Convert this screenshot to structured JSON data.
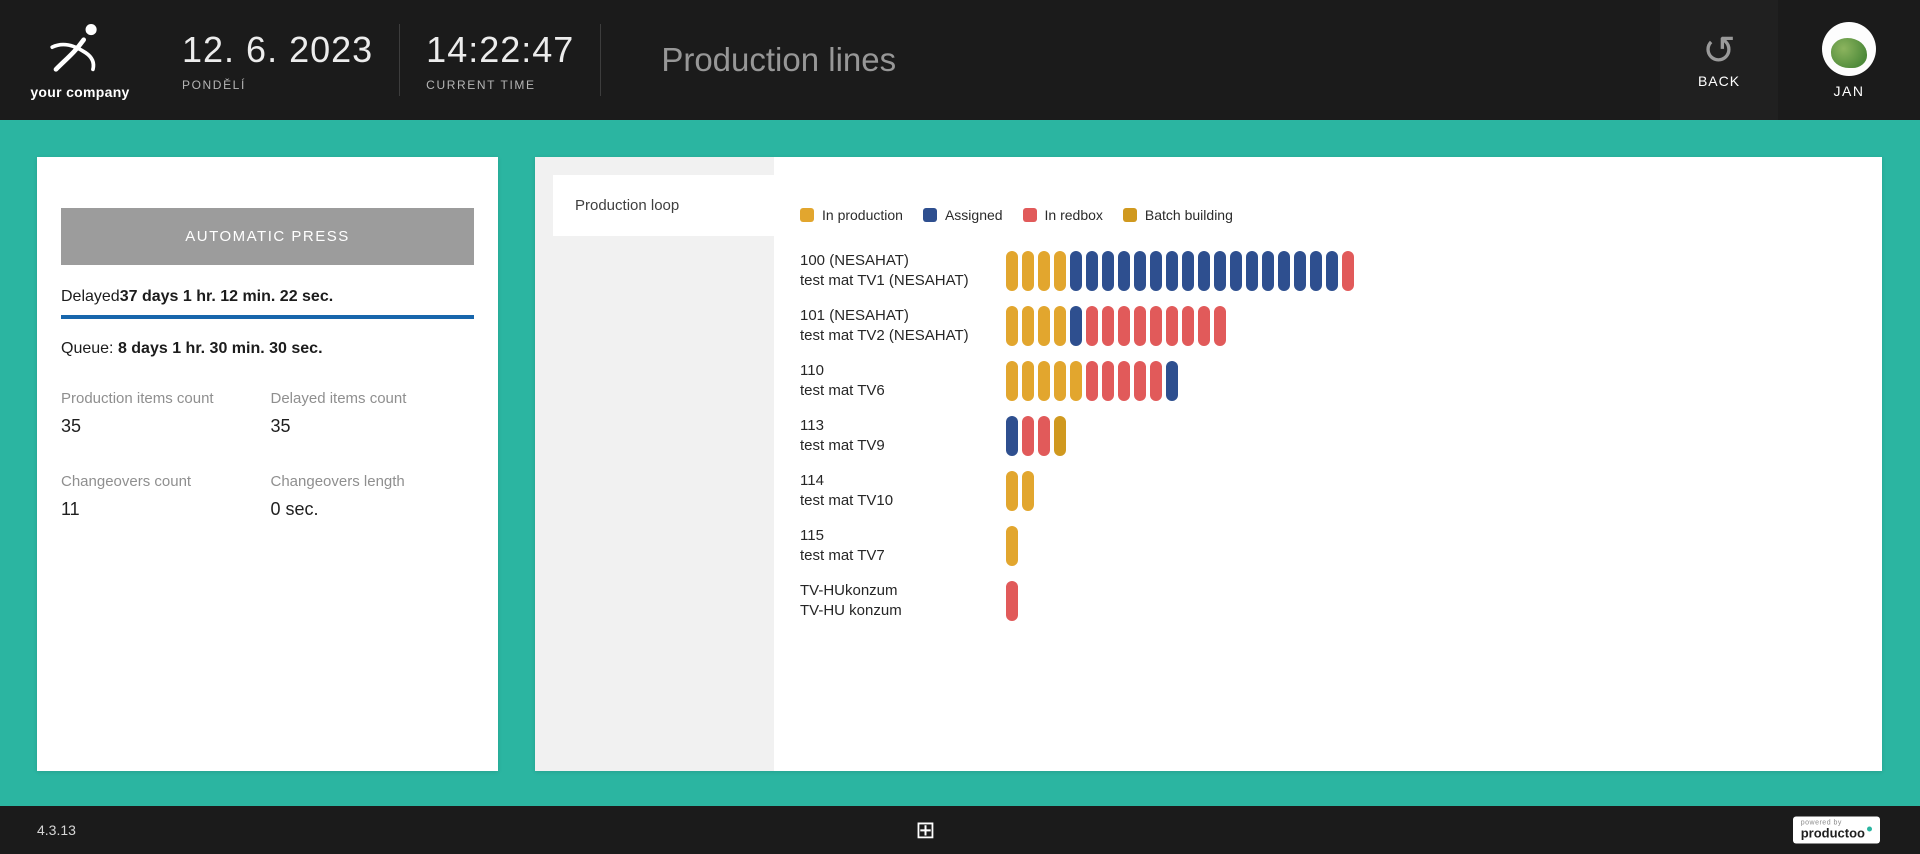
{
  "header": {
    "logo_text": "your company",
    "date": "12. 6. 2023",
    "day": "PONDĚLÍ",
    "time": "14:22:47",
    "time_label": "CURRENT TIME",
    "title": "Production lines",
    "back_icon": "↺",
    "back_label": "BACK",
    "user_name": "JAN"
  },
  "machine_card": {
    "name": "AUTOMATIC PRESS",
    "delayed_label": "Delayed",
    "delayed_value": "37 days 1 hr. 12 min. 22 sec.",
    "queue_label": "Queue: ",
    "queue_value": "8 days 1 hr. 30 min. 30 sec.",
    "stats": [
      {
        "label": "Production items count",
        "value": "35"
      },
      {
        "label": "Delayed items count",
        "value": "35"
      },
      {
        "label": "Changeovers count",
        "value": "11"
      },
      {
        "label": "Changeovers length",
        "value": "0 sec."
      }
    ]
  },
  "panel": {
    "tab": "Production loop",
    "legend": [
      {
        "label": "In production",
        "status": "production"
      },
      {
        "label": "Assigned",
        "status": "assigned"
      },
      {
        "label": "In redbox",
        "status": "redbox"
      },
      {
        "label": "Batch building",
        "status": "batch"
      }
    ],
    "rows": [
      {
        "name": "100 (NESAHAT)",
        "material": "test mat TV1 (NESAHAT)",
        "segments": [
          {
            "status": "production",
            "count": 4
          },
          {
            "status": "assigned",
            "count": 17
          },
          {
            "status": "redbox",
            "count": 1
          }
        ]
      },
      {
        "name": "101 (NESAHAT)",
        "material": "test mat TV2 (NESAHAT)",
        "segments": [
          {
            "status": "production",
            "count": 4
          },
          {
            "status": "assigned",
            "count": 1
          },
          {
            "status": "redbox",
            "count": 9
          }
        ]
      },
      {
        "name": "110",
        "material": "test mat TV6",
        "segments": [
          {
            "status": "production",
            "count": 5
          },
          {
            "status": "redbox",
            "count": 5
          },
          {
            "status": "assigned",
            "count": 1
          }
        ]
      },
      {
        "name": "113",
        "material": "test mat TV9",
        "segments": [
          {
            "status": "assigned",
            "count": 1
          },
          {
            "status": "redbox",
            "count": 2
          },
          {
            "status": "batch",
            "count": 1
          }
        ]
      },
      {
        "name": "114",
        "material": "test mat TV10",
        "segments": [
          {
            "status": "production",
            "count": 2
          }
        ]
      },
      {
        "name": "115",
        "material": "test mat TV7",
        "segments": [
          {
            "status": "production",
            "count": 1
          }
        ]
      },
      {
        "name": "TV-HUkonzum",
        "material": "TV-HU konzum",
        "segments": [
          {
            "status": "redbox",
            "count": 1
          }
        ]
      }
    ]
  },
  "footer": {
    "version": "4.3.13",
    "grid_icon": "⊞",
    "powered_by": "powered by",
    "brand": "productoo"
  },
  "colors": {
    "background_teal": "#2BB5A1",
    "bar_dark": "#1B1B1B",
    "accent_blue": "#1766AC",
    "machine_button_gray": "#9C9C9C",
    "status": {
      "production": "#E2A62E",
      "assigned": "#2E4F8F",
      "redbox": "#E15A5A",
      "batch": "#D0991F"
    }
  }
}
